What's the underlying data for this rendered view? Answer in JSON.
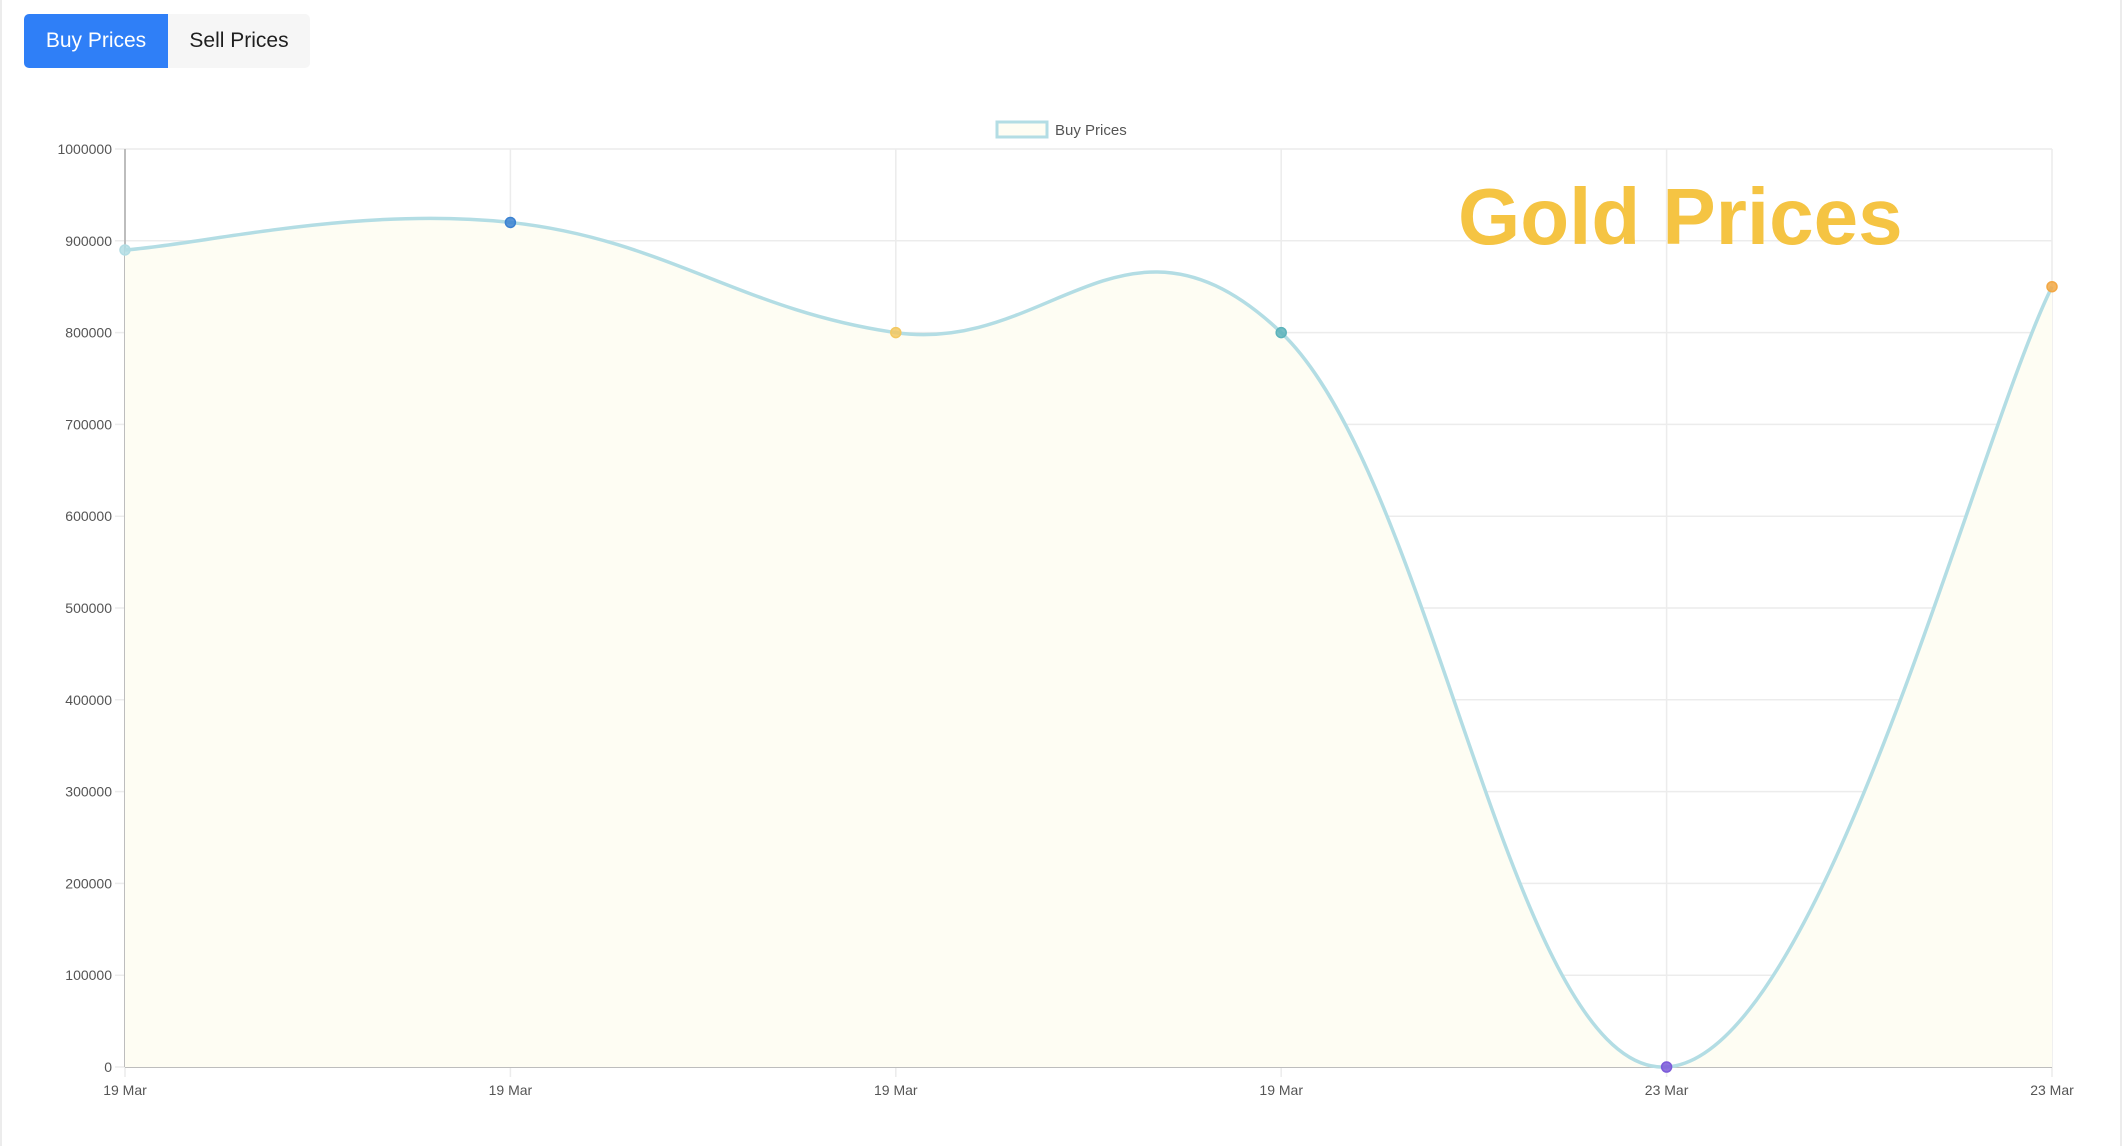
{
  "tabs": [
    {
      "label": "Buy Prices",
      "active": true
    },
    {
      "label": "Sell Prices",
      "active": false
    }
  ],
  "colors": {
    "accent": "#2f7ff7",
    "line": "#b3dde4",
    "fill": "#fefdf3",
    "title": "#f5c443",
    "grid": "#ececec",
    "axis": "#bdbdbd"
  },
  "chart_data": {
    "type": "line",
    "title": "Gold Prices",
    "legend": {
      "label": "Buy Prices",
      "position": "top"
    },
    "categories": [
      "19 Mar",
      "19 Mar",
      "19 Mar",
      "19 Mar",
      "23 Mar",
      "23 Mar"
    ],
    "series": [
      {
        "name": "Buy Prices",
        "values": [
          890000,
          920000,
          800000,
          800000,
          0,
          850000
        ],
        "point_colors": [
          "#b3dde4",
          "#3b82d1",
          "#f3c860",
          "#5cb3bb",
          "#7c5bd9",
          "#f2a845"
        ]
      }
    ],
    "ylim": [
      0,
      1000000
    ],
    "yticks": [
      0,
      100000,
      200000,
      300000,
      400000,
      500000,
      600000,
      700000,
      800000,
      900000,
      1000000
    ],
    "ytick_labels": [
      "0",
      "100000",
      "200000",
      "300000",
      "400000",
      "500000",
      "600000",
      "700000",
      "800000",
      "900000",
      "1000000"
    ],
    "grid": true,
    "smooth": true,
    "filled": true
  }
}
